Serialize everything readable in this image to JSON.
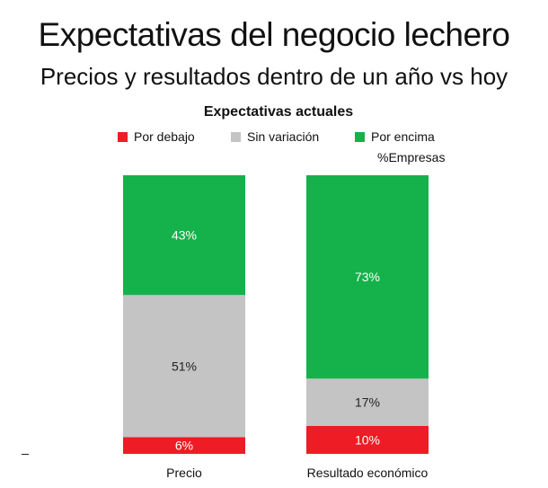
{
  "title": "Expectativas del negocio lechero",
  "subtitle": "Precios y resultados dentro de un año vs hoy",
  "chart_data": {
    "type": "bar",
    "stacked": true,
    "title": "Expectativas actuales",
    "unit_label": "%Empresas",
    "categories": [
      "Precio",
      "Resultado económico"
    ],
    "series": [
      {
        "name": "Por debajo",
        "color": "#ee1c25",
        "values": [
          6,
          10
        ],
        "labels": [
          "6%",
          "10%"
        ]
      },
      {
        "name": "Sin variación",
        "color": "#c4c4c4",
        "values": [
          51,
          17
        ],
        "labels": [
          "51%",
          "17%"
        ]
      },
      {
        "name": "Por encima",
        "color": "#15b24b",
        "values": [
          43,
          73
        ],
        "labels": [
          "43%",
          "73%"
        ]
      }
    ],
    "ylim": [
      0,
      100
    ],
    "grid": false,
    "legend_position": "top"
  }
}
